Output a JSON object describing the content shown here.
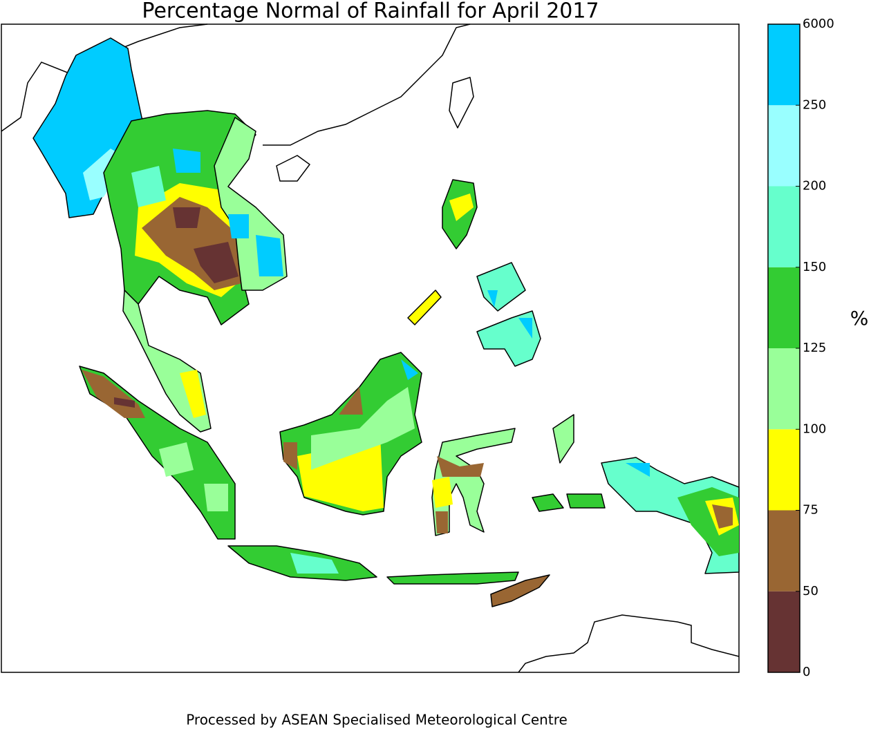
{
  "title": "Percentage Normal of Rainfall for April 2017",
  "colorbar": {
    "unit": "%",
    "ticks": [
      0,
      50,
      75,
      100,
      125,
      150,
      200,
      250,
      6000
    ],
    "colors": [
      "#663333",
      "#996633",
      "#ffff00",
      "#99ff99",
      "#33cc33",
      "#66ffcc",
      "#99ffff",
      "#00ccff"
    ]
  },
  "footer": "Processed by ASEAN Specialised Meteorological Centre"
}
